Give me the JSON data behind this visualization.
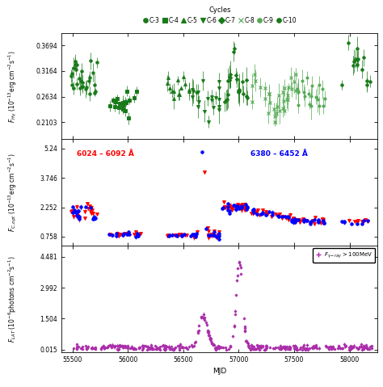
{
  "title_legend": "Cycles",
  "legend_labels": [
    "C-3",
    "C-4",
    "C-5",
    "C-6",
    "C-7",
    "C-8",
    "C-9",
    "C-10"
  ],
  "legend_markers": [
    "o",
    "s",
    "^",
    "v",
    "D",
    "x",
    "o",
    "o"
  ],
  "panel1": {
    "ylabel": "$F_{H\\gamma}$ (10$^{-13}$erg cm$^{-2}$s$^{-1}$)",
    "yticks": [
      0.2103,
      0.2634,
      0.3164,
      0.3694
    ],
    "ylim": [
      0.175,
      0.395
    ]
  },
  "panel2": {
    "ylabel": "$F_{C,opt}$ (10$^{-13}$erg cm$^{-2}$s$^{-1}$)",
    "yticks": [
      0.758,
      2.252,
      3.746,
      5.24
    ],
    "ylim": [
      0.3,
      5.7
    ],
    "label_red": "6024 – 6092 Å",
    "label_blue": "6380 – 6452 Å"
  },
  "panel3": {
    "ylabel": "$F_{LAT}$ (10$^{-6}$photons cm$^{-2}$s$^{-1}$)",
    "yticks": [
      0.015,
      1.504,
      2.992,
      4.481
    ],
    "ylim": [
      -0.1,
      5.0
    ],
    "legend_label": "$F_{\\gamma-ray} > 100$MeV"
  },
  "xlabel": "MJD",
  "xlim": [
    55400,
    58250
  ],
  "xticks": [
    55500,
    56000,
    56500,
    57000,
    57500,
    58000
  ],
  "dark_green": "#1a7a1a",
  "light_green": "#55aa55",
  "purple": "#aa2daa"
}
